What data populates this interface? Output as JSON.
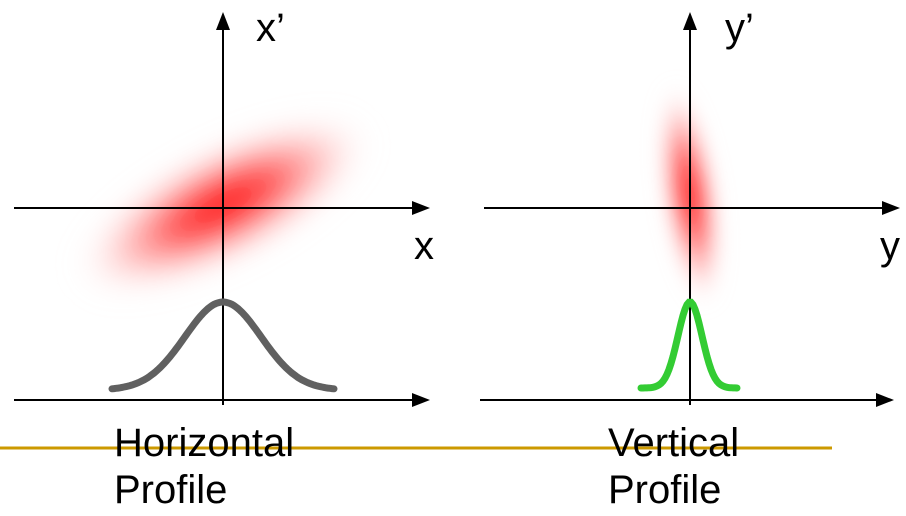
{
  "colors": {
    "axis": "#000000",
    "blob": "#ff0000",
    "horizontal_curve": "#606060",
    "vertical_curve": "#33cc33",
    "rule": "#cc9900"
  },
  "left_panel": {
    "vertical_axis_label": "x’",
    "horizontal_axis_label": "x",
    "caption_line1": "Horizontal",
    "caption_line2": "Profile"
  },
  "right_panel": {
    "vertical_axis_label": "y’",
    "horizontal_axis_label": "y",
    "caption_line1": "Vertical",
    "caption_line2": "Profile"
  }
}
